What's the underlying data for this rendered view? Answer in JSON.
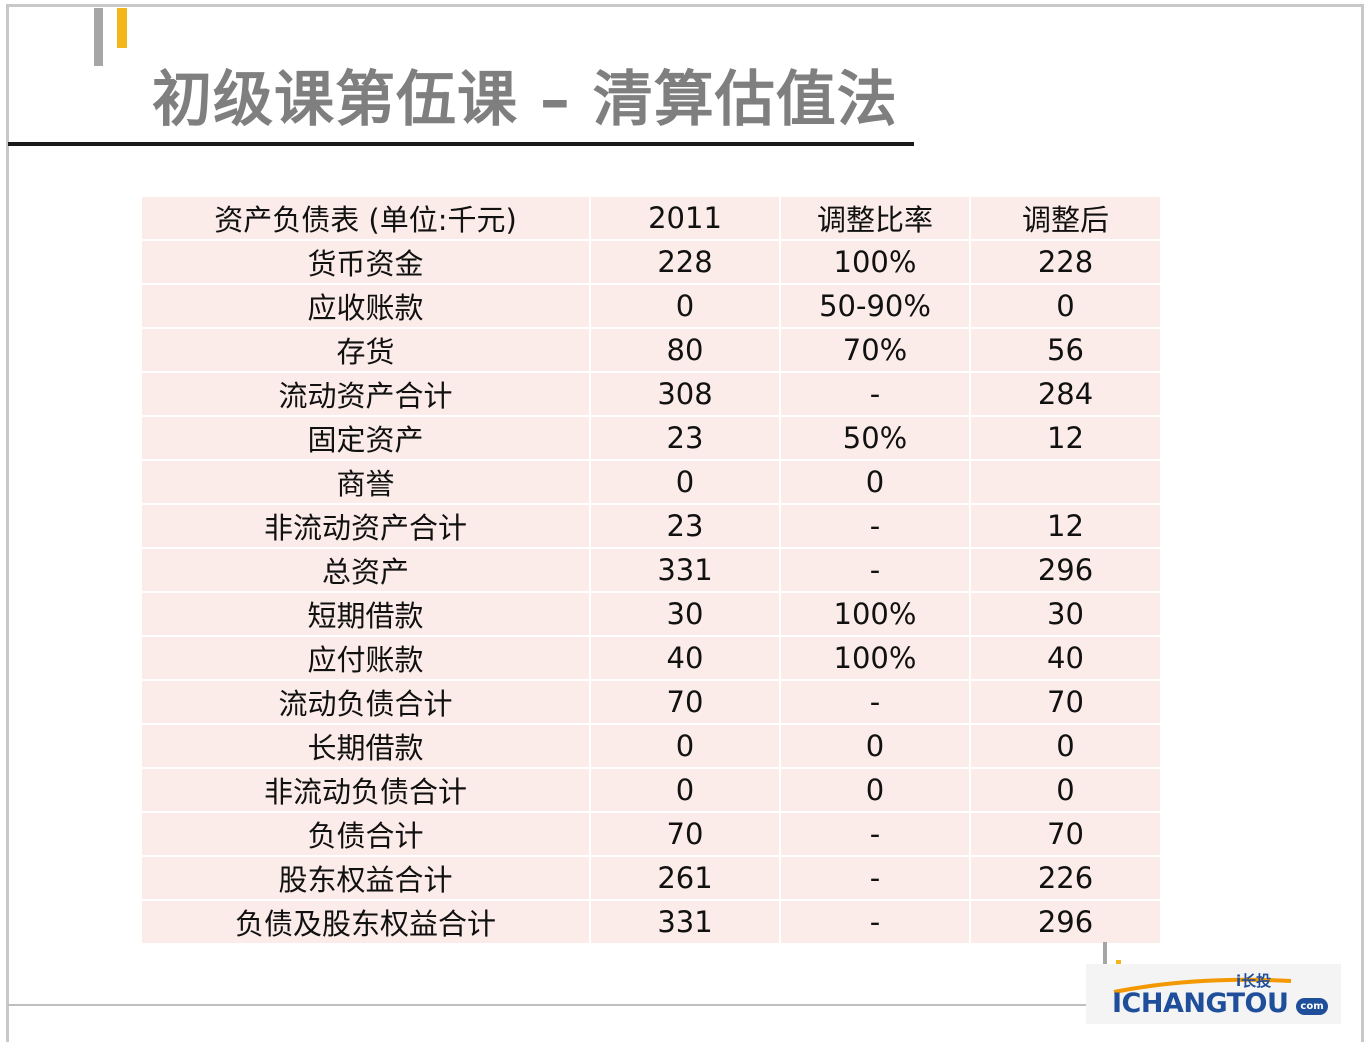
{
  "slide": {
    "title": "初级课第伍课 – 清算估值法"
  },
  "table": {
    "headers": [
      "资产负债表 (单位:千元)",
      "2011",
      "调整比率",
      "调整后"
    ],
    "rows": [
      [
        "货币资金",
        "228",
        "100%",
        "228"
      ],
      [
        "应收账款",
        "0",
        "50-90%",
        "0"
      ],
      [
        "存货",
        "80",
        "70%",
        "56"
      ],
      [
        "流动资产合计",
        "308",
        "-",
        "284"
      ],
      [
        "固定资产",
        "23",
        "50%",
        "12"
      ],
      [
        "商誉",
        "0",
        "0",
        ""
      ],
      [
        "非流动资产合计",
        "23",
        "-",
        "12"
      ],
      [
        "总资产",
        "331",
        "-",
        "296"
      ],
      [
        "短期借款",
        "30",
        "100%",
        "30"
      ],
      [
        "应付账款",
        "40",
        "100%",
        "40"
      ],
      [
        "流动负债合计",
        "70",
        "-",
        "70"
      ],
      [
        "长期借款",
        "0",
        "0",
        "0"
      ],
      [
        "非流动负债合计",
        "0",
        "0",
        "0"
      ],
      [
        "负债合计",
        "70",
        "-",
        "70"
      ],
      [
        "股东权益合计",
        "261",
        "-",
        "226"
      ],
      [
        "负债及股东权益合计",
        "331",
        "-",
        "296"
      ]
    ]
  },
  "logo": {
    "small_text": "i长投",
    "main_text": "ICHANGTOU",
    "suffix": "com"
  },
  "colors": {
    "accent_yellow": "#f3b71b",
    "accent_gray": "#a6a6a6",
    "table_fill": "#fbece9",
    "title_gray": "#7f7f7f",
    "brand_blue": "#1f4e9a",
    "brand_orange": "#f39800"
  }
}
